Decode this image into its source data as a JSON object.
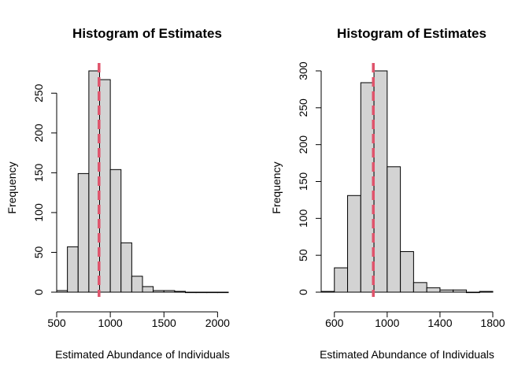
{
  "chart_data": [
    {
      "type": "bar",
      "title": "Histogram of Estimates",
      "xlabel": "Estimated Abundance of Individuals",
      "ylabel": "Frequency",
      "bin_edges": [
        500,
        600,
        700,
        800,
        900,
        1000,
        1100,
        1200,
        1300,
        1400,
        1500,
        1600,
        1700,
        1800,
        1900,
        2000,
        2100
      ],
      "values": [
        2,
        57,
        149,
        278,
        267,
        154,
        62,
        20,
        7,
        2,
        2,
        1,
        0,
        0,
        0,
        0
      ],
      "vline": 895,
      "xlim": [
        500,
        2100
      ],
      "ylim": [
        0,
        278
      ],
      "xticks": [
        500,
        1000,
        1500,
        2000
      ],
      "yticks": [
        0,
        50,
        100,
        150,
        200,
        250
      ],
      "bar_color": "#d3d3d3",
      "vline_color": "#df536b"
    },
    {
      "type": "bar",
      "title": "Histogram of Estimates",
      "xlabel": "Estimated Abundance of Individuals",
      "ylabel": "Frequency",
      "bin_edges": [
        500,
        600,
        700,
        800,
        900,
        1000,
        1100,
        1200,
        1300,
        1400,
        1500,
        1600,
        1700,
        1800
      ],
      "values": [
        1,
        33,
        131,
        284,
        300,
        170,
        55,
        13,
        6,
        3,
        3,
        0,
        1
      ],
      "vline": 895,
      "xlim": [
        500,
        1800
      ],
      "ylim": [
        0,
        300
      ],
      "xticks": [
        600,
        1000,
        1400,
        1800
      ],
      "yticks": [
        0,
        50,
        100,
        150,
        200,
        250,
        300
      ],
      "bar_color": "#d3d3d3",
      "vline_color": "#df536b"
    }
  ]
}
